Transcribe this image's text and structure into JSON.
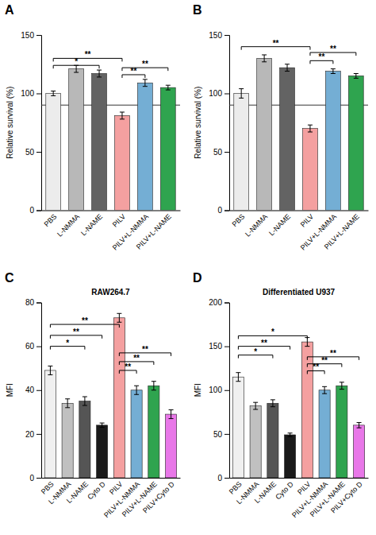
{
  "chart_data": [
    {
      "type": "bar",
      "title": "A",
      "ylabel": "Relative survival (%)",
      "categories": [
        "PBS",
        "L-NMMA",
        "L-NAME",
        "PILV",
        "PILV+L-NMMA",
        "PILV+L-NAME"
      ],
      "values": [
        100,
        121,
        117,
        81,
        109,
        105
      ],
      "errors": [
        2,
        3,
        3,
        3,
        3,
        2
      ],
      "colors": [
        "#ececec",
        "#b8b8b8",
        "#636363",
        "#f4a0a0",
        "#74aed4",
        "#2fa44f"
      ],
      "ylim": [
        0,
        150
      ],
      "yticks": [
        0,
        50,
        100,
        150
      ],
      "hline": 90,
      "annotations": [
        {
          "from": "PBS",
          "to": "PILV",
          "y": 130,
          "label": "**"
        },
        {
          "from": "PBS",
          "to": "L-NAME",
          "y": 124,
          "label": "*"
        },
        {
          "from": "PILV",
          "to": "PILV+L-NMMA",
          "y": 116,
          "label": "**"
        },
        {
          "from": "PILV",
          "to": "PILV+L-NAME",
          "y": 122,
          "label": "**"
        }
      ]
    },
    {
      "type": "bar",
      "title": "B",
      "ylabel": "Relative survival (%)",
      "categories": [
        "PBS",
        "L-NMMA",
        "L-NAME",
        "PILV",
        "PILV+L-NMMA",
        "PILV+L-NAME"
      ],
      "values": [
        100,
        130,
        122,
        70,
        119,
        115
      ],
      "errors": [
        4,
        3,
        3,
        3,
        2,
        2
      ],
      "colors": [
        "#ececec",
        "#b8b8b8",
        "#636363",
        "#f4a0a0",
        "#74aed4",
        "#2fa44f"
      ],
      "ylim": [
        0,
        150
      ],
      "yticks": [
        0,
        50,
        100,
        150
      ],
      "hline": 90,
      "annotations": [
        {
          "from": "PBS",
          "to": "PILV",
          "y": 140,
          "label": "**"
        },
        {
          "from": "PILV",
          "to": "PILV+L-NMMA",
          "y": 128,
          "label": "**"
        },
        {
          "from": "PILV",
          "to": "PILV+L-NAME",
          "y": 135,
          "label": "**"
        }
      ]
    },
    {
      "type": "bar",
      "title": "C",
      "subtitle": "RAW264.7",
      "ylabel": "MFI",
      "categories": [
        "PBS",
        "L-NMMA",
        "L-NAME",
        "Cyto D",
        "PILV",
        "PILV+L-NMMA",
        "PILV+L-NAME",
        "PILV+Cyto D"
      ],
      "values": [
        49,
        34,
        35,
        24,
        73,
        40,
        42,
        29
      ],
      "errors": [
        2,
        2,
        2,
        1,
        2,
        2,
        2,
        2
      ],
      "colors": [
        "#f0f0f0",
        "#c0c0c0",
        "#555555",
        "#1a1a1a",
        "#f4a0a0",
        "#74aed4",
        "#2fa44f",
        "#e877e8"
      ],
      "ylim": [
        0,
        80
      ],
      "yticks": [
        0,
        20,
        40,
        60,
        80
      ],
      "annotations": [
        {
          "from": "PBS",
          "to": "L-NAME",
          "y": 60,
          "label": "*"
        },
        {
          "from": "PBS",
          "to": "Cyto D",
          "y": 65,
          "label": "**"
        },
        {
          "from": "PBS",
          "to": "PILV",
          "y": 70,
          "label": "**"
        },
        {
          "from": "PILV",
          "to": "PILV+L-NMMA",
          "y": 49,
          "label": "**"
        },
        {
          "from": "PILV",
          "to": "PILV+L-NAME",
          "y": 53,
          "label": "**"
        },
        {
          "from": "PILV",
          "to": "PILV+Cyto D",
          "y": 57,
          "label": "**"
        }
      ]
    },
    {
      "type": "bar",
      "title": "D",
      "subtitle": "Differentiated U937",
      "ylabel": "MFI",
      "categories": [
        "PBS",
        "L-NMMA",
        "L-NAME",
        "Cyto D",
        "PILV",
        "PILV+L-NMMA",
        "PILV+L-NAME",
        "PILV+Cyto D"
      ],
      "values": [
        115,
        82,
        85,
        49,
        155,
        100,
        105,
        60
      ],
      "errors": [
        5,
        4,
        4,
        2,
        5,
        4,
        4,
        3
      ],
      "colors": [
        "#f0f0f0",
        "#c0c0c0",
        "#555555",
        "#1a1a1a",
        "#f4a0a0",
        "#74aed4",
        "#2fa44f",
        "#e877e8"
      ],
      "ylim": [
        0,
        200
      ],
      "yticks": [
        0,
        50,
        100,
        150,
        200
      ],
      "annotations": [
        {
          "from": "PBS",
          "to": "L-NAME",
          "y": 140,
          "label": "*"
        },
        {
          "from": "PBS",
          "to": "Cyto D",
          "y": 150,
          "label": "**"
        },
        {
          "from": "PBS",
          "to": "PILV",
          "y": 162,
          "label": "*"
        },
        {
          "from": "PILV",
          "to": "PILV+L-NMMA",
          "y": 122,
          "label": "**"
        },
        {
          "from": "PILV",
          "to": "PILV+L-NAME",
          "y": 130,
          "label": "**"
        },
        {
          "from": "PILV",
          "to": "PILV+Cyto D",
          "y": 138,
          "label": "**"
        }
      ]
    }
  ]
}
